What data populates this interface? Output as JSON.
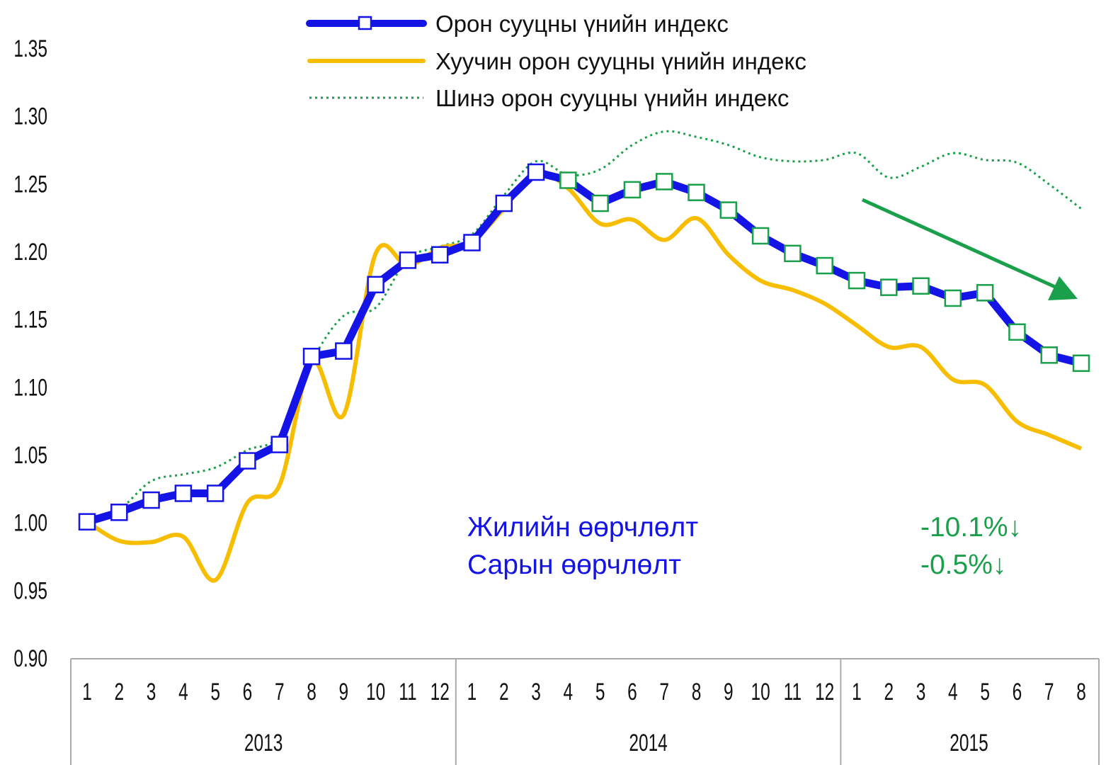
{
  "chart_data": {
    "type": "line",
    "title": "",
    "xlabel": "",
    "ylabel": "",
    "ylim": [
      0.9,
      1.35
    ],
    "yticks": [
      "0.90",
      "0.95",
      "1.00",
      "1.05",
      "1.10",
      "1.15",
      "1.20",
      "1.25",
      "1.30",
      "1.35"
    ],
    "years": [
      {
        "label": "2013",
        "months": [
          "1",
          "2",
          "3",
          "4",
          "5",
          "6",
          "7",
          "8",
          "9",
          "10",
          "11",
          "12"
        ]
      },
      {
        "label": "2014",
        "months": [
          "1",
          "2",
          "3",
          "4",
          "5",
          "6",
          "7",
          "8",
          "9",
          "10",
          "11",
          "12"
        ]
      },
      {
        "label": "2015",
        "months": [
          "1",
          "2",
          "3",
          "4",
          "5",
          "6",
          "7",
          "8"
        ]
      }
    ],
    "legend_position": "top",
    "series": [
      {
        "name": "Орон сууцны үнийн индекс",
        "color": "#1414e6",
        "marker": "square",
        "values": [
          1.0,
          1.007,
          1.016,
          1.021,
          1.021,
          1.045,
          1.057,
          1.122,
          1.126,
          1.175,
          1.193,
          1.197,
          1.206,
          1.235,
          1.258,
          1.252,
          1.235,
          1.245,
          1.251,
          1.243,
          1.23,
          1.211,
          1.198,
          1.189,
          1.178,
          1.173,
          1.174,
          1.165,
          1.169,
          1.14,
          1.123,
          1.117
        ]
      },
      {
        "name": "Хуучин орон сууцны үнийн индекс",
        "color": "#f7bd00",
        "marker": "none",
        "values": [
          1.0,
          0.986,
          0.985,
          0.989,
          0.957,
          1.014,
          1.027,
          1.118,
          1.079,
          1.198,
          1.189,
          1.202,
          1.207,
          1.231,
          1.258,
          1.246,
          1.22,
          1.223,
          1.208,
          1.224,
          1.197,
          1.178,
          1.171,
          1.161,
          1.145,
          1.129,
          1.129,
          1.105,
          1.101,
          1.074,
          1.064,
          1.054
        ]
      },
      {
        "name": "Шинэ орон сууцны үнийн индекс",
        "color": "#1aa04a",
        "marker": "dotted",
        "values": [
          1.0,
          1.009,
          1.03,
          1.035,
          1.04,
          1.053,
          1.064,
          1.118,
          1.152,
          1.158,
          1.194,
          1.203,
          1.212,
          1.241,
          1.266,
          1.256,
          1.26,
          1.278,
          1.288,
          1.284,
          1.278,
          1.269,
          1.266,
          1.267,
          1.272,
          1.254,
          1.262,
          1.272,
          1.267,
          1.265,
          1.249,
          1.231
        ]
      }
    ],
    "marker_green_from_index": 15,
    "annotations": {
      "annual_label": "Жилийн өөрчлөлт",
      "monthly_label": "Сарын өөрчлөлт",
      "annual_value": "-10.1%↓",
      "monthly_value": "-0.5%↓",
      "label_color": "#1414e6",
      "value_color": "#1aa04a"
    }
  }
}
